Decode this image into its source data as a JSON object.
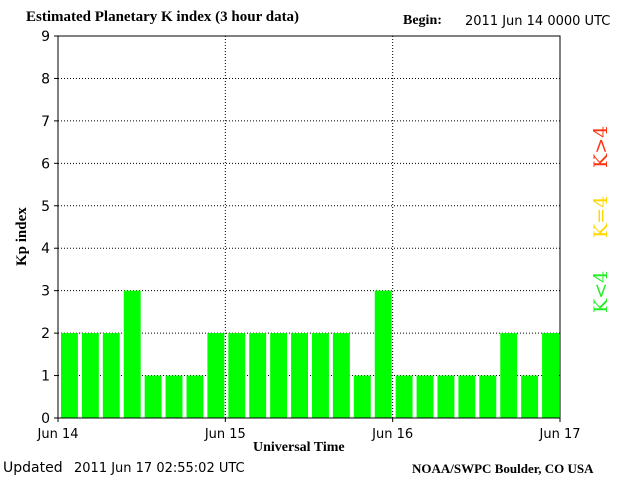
{
  "header": {
    "title": "Estimated Planetary K index (3 hour data)",
    "begin_label": "Begin:",
    "begin_value": "2011 Jun 14 0000 UTC"
  },
  "footer": {
    "updated_label": "Updated",
    "updated_value": "2011 Jun 17 02:55:02 UTC",
    "credit": "NOAA/SWPC Boulder, CO USA"
  },
  "legend": [
    {
      "label": "K<4",
      "color": "#22ee22"
    },
    {
      "label": "K=4",
      "color": "#ffd700"
    },
    {
      "label": "K>4",
      "color": "#ff3311"
    }
  ],
  "chart_data": {
    "type": "bar",
    "title": "Estimated Planetary K index (3 hour data)",
    "xlabel": "Universal Time",
    "ylabel": "Kp index",
    "ylim": [
      0,
      9
    ],
    "yticks": [
      0,
      1,
      2,
      3,
      4,
      5,
      6,
      7,
      8,
      9
    ],
    "xticks": [
      "Jun 14",
      "Jun 15",
      "Jun 16",
      "Jun 17"
    ],
    "bar_count_per_day": 8,
    "grid": true,
    "values": [
      2,
      2,
      2,
      3,
      1,
      1,
      1,
      2,
      2,
      2,
      2,
      2,
      2,
      2,
      1,
      3,
      1,
      1,
      1,
      1,
      1,
      2,
      1,
      2
    ],
    "bar_color": "#00ff00"
  }
}
